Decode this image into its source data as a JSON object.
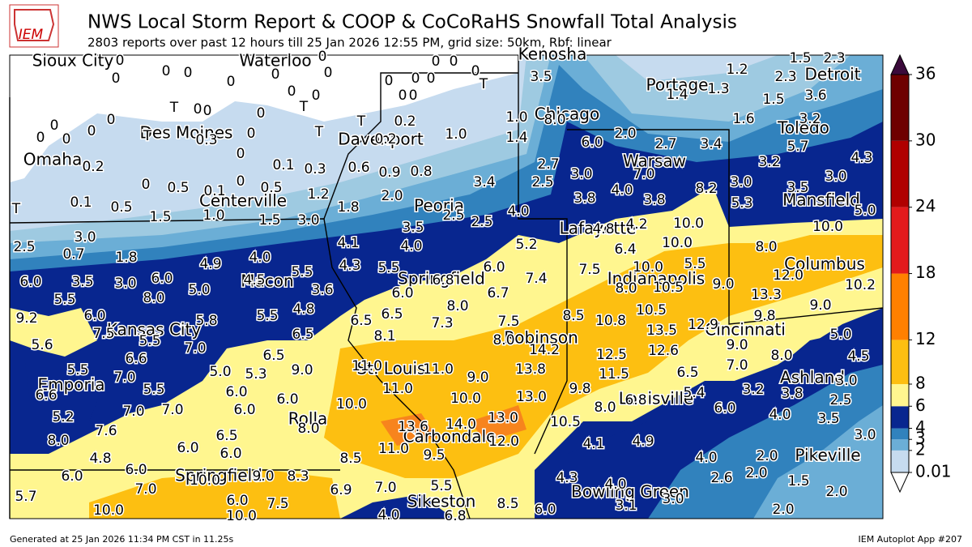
{
  "header": {
    "logo_text": "IEM",
    "title": "NWS Local Storm Report & COOP & CoCoRaHS Snowfall Total Analysis",
    "subtitle": "2803 reports over past 12 hours till 25 Jan 2026 12:55 PM, grid size: 50km, Rbf: linear"
  },
  "map": {
    "cities": [
      "Sioux City",
      "Waterloo",
      "Kenosha",
      "Detroit",
      "Portage",
      "Chicago",
      "Des Moines",
      "Davenport",
      "Toledo",
      "Omaha",
      "Warsaw",
      "Centerville",
      "Peoria",
      "Mansfield",
      "Lafayette",
      "Columbus",
      "Springfield",
      "Indianapolis",
      "Macon",
      "Kansas City",
      "Robinson",
      "Cincinnati",
      "Emporia",
      "St. Louis",
      "Ashland",
      "Louisville",
      "Rolla",
      "Carbondale",
      "Pikeville",
      "Springfield",
      "Bowling Green",
      "Sikeston"
    ],
    "reports": [
      "0",
      "0",
      "0",
      "0",
      "0",
      "0",
      "0",
      "0",
      "0",
      "0",
      "0",
      "0",
      "0",
      "0",
      "0",
      "0",
      "0",
      "T",
      "3.5",
      "0",
      "0",
      "0",
      "0",
      "T",
      "T",
      "0",
      "0",
      "0",
      "0",
      "0",
      "0",
      "0.3",
      "T",
      "T",
      "T",
      "0.2",
      "0.2",
      "1.0",
      "1.0",
      "8.0",
      "1.4",
      "6.0",
      "2.0",
      "2.7",
      "3.4",
      "1.4",
      "1.3",
      "1.2",
      "2.3",
      "1.5",
      "2.3",
      "1.5",
      "3.6",
      "1.6",
      "3.2",
      "5.7",
      "3.2",
      "4.3",
      "0",
      "0.2",
      "0.1",
      "0.3",
      "0.6",
      "0.9",
      "0.8",
      "2.7",
      "3.0",
      "7.0",
      "3.4",
      "2.5",
      "3.0",
      "3.5",
      "3.0",
      "0",
      "0.5",
      "0.1",
      "0",
      "0.5",
      "1.2",
      "2.0",
      "3.8",
      "4.0",
      "3.8",
      "8.2",
      "5.3",
      "0.1",
      "0.5",
      "1.5",
      "1.0",
      "1.5",
      "3.0",
      "1.8",
      "3.5",
      "2.5",
      "2.5",
      "4.0",
      "4.8",
      "4.2",
      "10.0",
      "10.0",
      "5.0",
      "T",
      "2.5",
      "3.0",
      "0.7",
      "1.8",
      "4.9",
      "4.0",
      "4.1",
      "4.0",
      "4.3",
      "5.5",
      "6.0",
      "5.2",
      "6.4",
      "10.0",
      "8.0",
      "7.5",
      "10.0",
      "5.5",
      "6.0",
      "3.5",
      "3.0",
      "6.0",
      "5.0",
      "4.5",
      "5.5",
      "3.6",
      "6.0",
      "6.8",
      "6.7",
      "7.4",
      "8.0",
      "10.5",
      "9.0",
      "12.0",
      "10.2",
      "5.5",
      "8.0",
      "13.3",
      "9.0",
      "9.2",
      "6.0",
      "7.5",
      "5.5",
      "5.8",
      "5.5",
      "4.8",
      "6.5",
      "8.0",
      "7.5",
      "8.5",
      "10.8",
      "10.5",
      "9.8",
      "5.6",
      "7.0",
      "6.5",
      "6.5",
      "8.1",
      "7.3",
      "8.0",
      "13.5",
      "12.9",
      "5.0",
      "6.6",
      "6.5",
      "14.2",
      "12.5",
      "12.6",
      "9.0",
      "4.5",
      "5.5",
      "7.0",
      "5.0",
      "5.3",
      "9.0",
      "11.0",
      "11.0",
      "9.0",
      "13.8",
      "11.5",
      "6.5",
      "7.0",
      "8.0",
      "3.0",
      "6.6",
      "5.5",
      "6.0",
      "6.0",
      "11.0",
      "10.0",
      "13.0",
      "9.8",
      "6.8",
      "5.4",
      "3.2",
      "3.8",
      "2.5",
      "7.0",
      "7.0",
      "6.0",
      "10.0",
      "8.0",
      "6.0",
      "4.0",
      "3.5",
      "5.2",
      "7.6",
      "8.0",
      "13.6",
      "14.0",
      "13.0",
      "10.5",
      "8.0",
      "6.5",
      "12.0",
      "3.0",
      "4.1",
      "4.9",
      "6.0",
      "6.0",
      "11.0",
      "9.5",
      "4.0",
      "2.0",
      "4.8",
      "6.0",
      "6.0",
      "10.0",
      "9.0",
      "8.3",
      "8.5",
      "4.3",
      "4.0",
      "2.6",
      "2.0",
      "1.5",
      "7.0",
      "6.9",
      "7.0",
      "5.5",
      "2.0",
      "5.7",
      "6.0",
      "7.5",
      "8.5",
      "3.1",
      "3.0",
      "10.0",
      "10.0",
      "4.0",
      "6.8",
      "6.0",
      "2.0"
    ]
  },
  "colorbar": {
    "ticks": [
      0.01,
      2,
      3,
      4,
      6,
      8,
      12,
      18,
      24,
      30,
      36
    ],
    "colors": [
      "#c6dbef",
      "#6baed6",
      "#3182bd",
      "#08268f",
      "#fff68f",
      "#fdbf11",
      "#ff8000",
      "#e31a1c",
      "#b00000",
      "#6e0000"
    ],
    "extend_max_color": "#3b0a3b",
    "extend_min_color": "#ffffff"
  },
  "footer": {
    "left": "Generated at 25 Jan 2026 11:34 PM CST in 11.25s",
    "right": "IEM Autoplot App #207"
  }
}
